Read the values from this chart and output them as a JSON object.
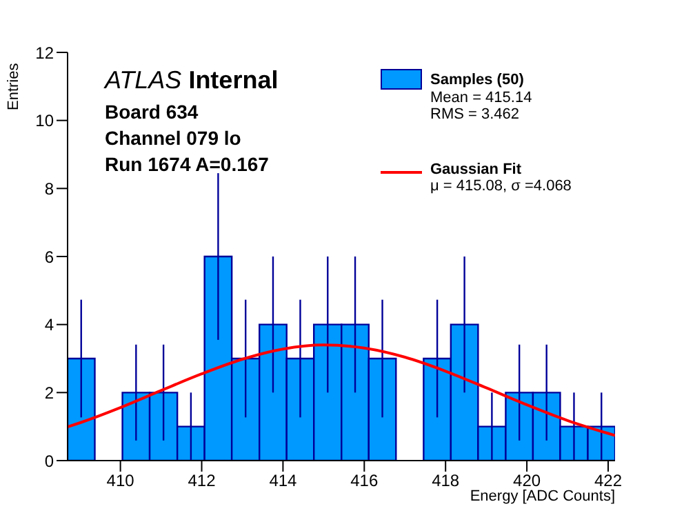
{
  "chart_data": {
    "type": "histogram",
    "title": "ATLAS Internal",
    "annotations": [
      "Board 634",
      "Channel 079 lo",
      "Run 1674 A=0.167",
      "Mean = 415.14",
      "RMS = 3.462",
      "μ = 415.08, σ =4.068"
    ],
    "xlabel": "Energy [ADC Counts]",
    "ylabel": "Entries",
    "bins": [
      408.7,
      409.37,
      410.05,
      410.72,
      411.4,
      412.07,
      412.74,
      413.42,
      414.09,
      414.76,
      415.44,
      416.11,
      416.78,
      417.46,
      418.13,
      418.8,
      419.48,
      420.15,
      420.82,
      421.5,
      422.17
    ],
    "series": [
      {
        "name": "Samples (50)",
        "color": "#0099ff",
        "values": [
          3,
          0,
          2,
          2,
          1,
          6,
          3,
          4,
          3,
          4,
          4,
          3,
          0,
          3,
          4,
          1,
          2,
          2,
          1,
          1
        ],
        "errors": [
          1.73,
          null,
          1.41,
          1.41,
          1,
          2.45,
          1.73,
          2,
          1.73,
          2,
          2,
          1.73,
          null,
          1.73,
          2,
          1,
          1.41,
          1.41,
          1,
          1
        ]
      },
      {
        "name": "Gaussian Fit",
        "type": "line",
        "color": "#ff0000",
        "x": [
          408.7,
          409,
          410,
          411,
          412,
          413,
          414,
          415,
          416,
          417,
          418,
          419,
          420,
          421,
          422,
          422.17
        ],
        "values": [
          0.99,
          1.11,
          1.56,
          2.06,
          2.55,
          2.98,
          3.28,
          3.4,
          3.31,
          3.04,
          2.63,
          2.14,
          1.64,
          1.18,
          0.8,
          0.74
        ]
      }
    ],
    "xlim": [
      408.7,
      422.17
    ],
    "xticks": [
      410,
      412,
      414,
      416,
      418,
      420,
      422
    ],
    "ylim": [
      0,
      12
    ],
    "yticks": [
      0,
      2,
      4,
      6,
      8,
      10,
      12
    ],
    "legend": "top right",
    "grid": false,
    "marker": "none",
    "line_style": "solid"
  }
}
